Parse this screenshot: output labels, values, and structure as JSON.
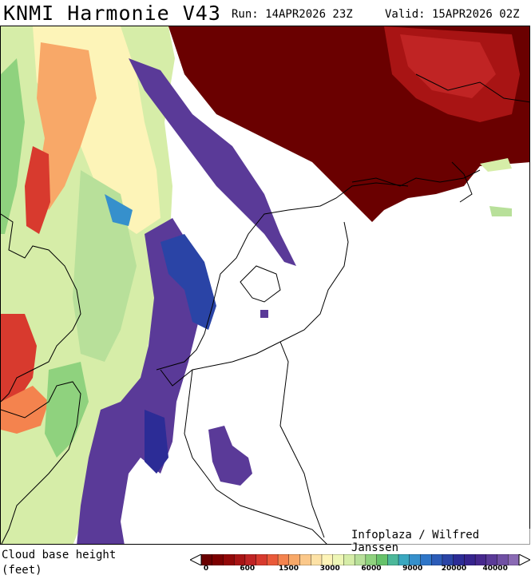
{
  "header": {
    "model": "KNMI Harmonie V43",
    "run": "Run: 14APR2026 23Z",
    "valid": "Valid: 15APR2026 02Z"
  },
  "credit": "Infoplaza / Wilfred Janssen",
  "legend": {
    "title": "Cloud base height\n(feet)",
    "colors": [
      "#6a0000",
      "#7c0000",
      "#920808",
      "#a81414",
      "#c02424",
      "#d83a2e",
      "#ea5a3a",
      "#f4834e",
      "#f8a868",
      "#fbc88a",
      "#fde2a6",
      "#fdf4b8",
      "#eef6b6",
      "#d6eda8",
      "#b8e09a",
      "#8fd27e",
      "#66c26a",
      "#4cb89a",
      "#3aa8c0",
      "#3690cc",
      "#2f76c8",
      "#2c5cb8",
      "#2a44a6",
      "#2c2c96",
      "#36248e",
      "#46288e",
      "#5a3a98",
      "#7050a4",
      "#8a6ab4"
    ],
    "ticks": [
      "0",
      "600",
      "1500",
      "3000",
      "6000",
      "9000",
      "20000",
      "40000"
    ]
  }
}
